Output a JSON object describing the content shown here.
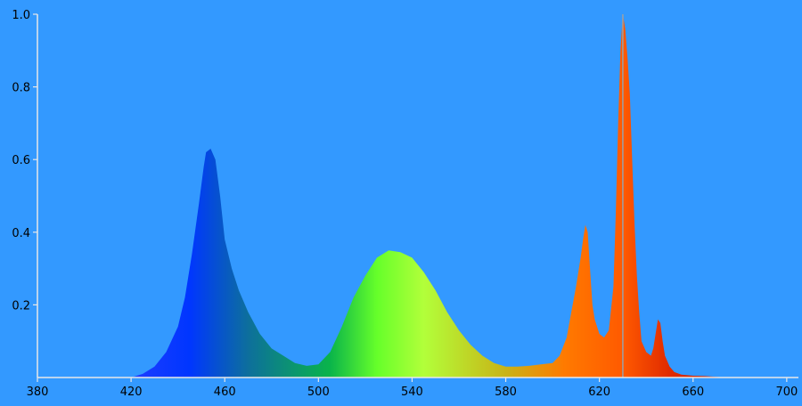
{
  "chart_data": {
    "type": "area",
    "title": "",
    "xlabel": "",
    "ylabel": "",
    "xlim": [
      380,
      705
    ],
    "ylim": [
      0,
      1.0
    ],
    "x_ticks": [
      "380",
      "420",
      "460",
      "500",
      "540",
      "580",
      "620",
      "660",
      "700"
    ],
    "y_ticks": [
      "0.2",
      "0.4",
      "0.6",
      "0.8",
      "1.0"
    ],
    "grid": false,
    "background": "#3399ff",
    "axis_color": "#e8e8e8",
    "x": [
      420,
      425,
      430,
      435,
      440,
      443,
      446,
      449,
      451,
      452,
      454,
      456,
      458,
      460,
      463,
      466,
      470,
      475,
      480,
      485,
      490,
      495,
      500,
      505,
      510,
      515,
      520,
      525,
      530,
      535,
      540,
      545,
      550,
      555,
      560,
      565,
      570,
      575,
      580,
      585,
      590,
      595,
      600,
      603,
      606,
      608,
      610,
      612,
      613,
      614,
      615,
      616,
      617,
      618,
      620,
      622,
      624,
      626,
      627,
      628,
      629,
      630,
      631,
      632,
      633,
      634,
      635,
      636,
      637,
      638,
      640,
      642,
      643,
      644,
      645,
      646,
      647,
      648,
      650,
      652,
      655,
      660,
      665,
      670,
      675
    ],
    "values": [
      0.0,
      0.01,
      0.03,
      0.07,
      0.14,
      0.22,
      0.34,
      0.48,
      0.58,
      0.62,
      0.63,
      0.6,
      0.5,
      0.38,
      0.3,
      0.24,
      0.18,
      0.12,
      0.08,
      0.06,
      0.04,
      0.032,
      0.036,
      0.07,
      0.14,
      0.22,
      0.28,
      0.33,
      0.35,
      0.345,
      0.33,
      0.29,
      0.24,
      0.18,
      0.13,
      0.09,
      0.06,
      0.04,
      0.03,
      0.03,
      0.032,
      0.036,
      0.04,
      0.06,
      0.11,
      0.18,
      0.25,
      0.33,
      0.38,
      0.42,
      0.4,
      0.3,
      0.2,
      0.16,
      0.12,
      0.11,
      0.13,
      0.25,
      0.45,
      0.7,
      0.9,
      1.0,
      0.96,
      0.88,
      0.78,
      0.6,
      0.42,
      0.28,
      0.18,
      0.1,
      0.07,
      0.06,
      0.08,
      0.12,
      0.16,
      0.15,
      0.1,
      0.06,
      0.03,
      0.015,
      0.008,
      0.005,
      0.004,
      0.002,
      0.0
    ],
    "peak_line": {
      "x": 630,
      "color": "#9aa0a8"
    },
    "fill_gradient_stops": [
      {
        "x": 420,
        "color": "#1e3cff"
      },
      {
        "x": 445,
        "color": "#0036ff"
      },
      {
        "x": 470,
        "color": "#0d6f9c"
      },
      {
        "x": 505,
        "color": "#0ab44a"
      },
      {
        "x": 525,
        "color": "#66ff2a"
      },
      {
        "x": 545,
        "color": "#b2ff3a"
      },
      {
        "x": 580,
        "color": "#c9b316"
      },
      {
        "x": 605,
        "color": "#ff7a00"
      },
      {
        "x": 630,
        "color": "#ff5a00"
      },
      {
        "x": 650,
        "color": "#e02a00"
      },
      {
        "x": 675,
        "color": "#c81e00"
      }
    ]
  }
}
